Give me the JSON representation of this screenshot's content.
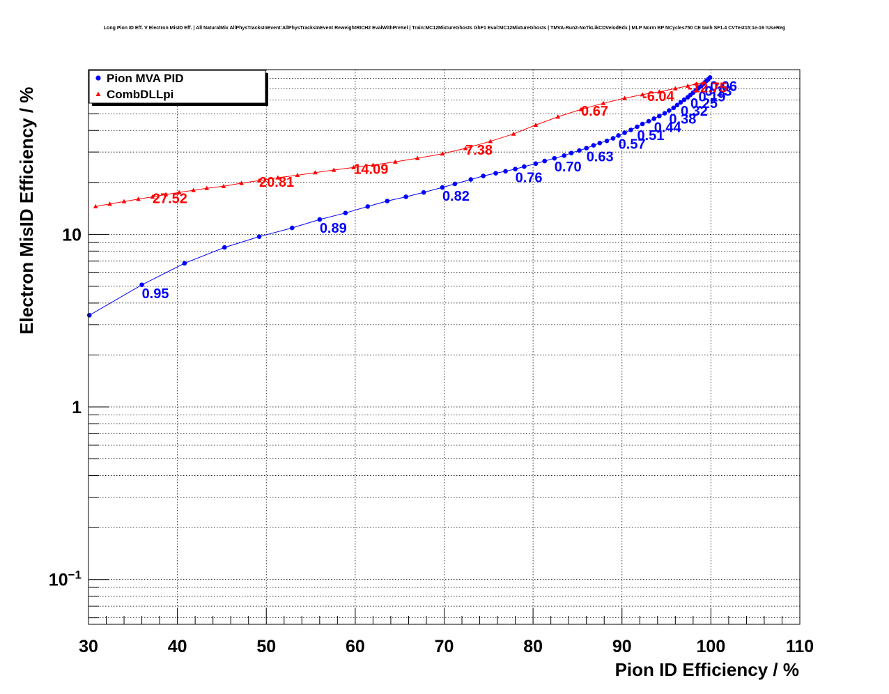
{
  "chart_data": {
    "type": "line",
    "title": "Long Pion ID Eff. V Electron MisID Eff. | All NaturalMix AllPhysTracksInEvent:AllPhysTracksInEvent ReweightRICH2 EvalWithPreSel | Train:MC12MixtureGhosts GhF1 Eval:MC12MixtureGhosts | TMVA-Run2-NoTkLikCDVelodEdx | MLP Norm BP NCycles750 CE tanh SF1.4 CVTest15:1e-16 !UseReg",
    "xlabel": "Pion ID Efficiency / %",
    "ylabel": "Electron MisID Efficiency / %",
    "xlim": [
      30,
      110
    ],
    "ylim": [
      0.055,
      90
    ],
    "yscale": "log",
    "grid": true,
    "legend_position": "top-left",
    "x_ticks": [
      "30",
      "40",
      "50",
      "60",
      "70",
      "80",
      "90",
      "100",
      "110"
    ],
    "y_ticks": [
      {
        "value": 0.1,
        "base": "10",
        "exp": "−1"
      },
      {
        "value": 1,
        "base": "1",
        "exp": ""
      },
      {
        "value": 10,
        "base": "10",
        "exp": ""
      }
    ],
    "series": [
      {
        "name": "Pion MVA PID",
        "color": "#0000ff",
        "marker": "circle",
        "x": [
          30.1,
          36.0,
          40.8,
          45.3,
          49.2,
          52.9,
          56.0,
          58.9,
          61.4,
          63.6,
          65.7,
          67.7,
          69.8,
          71.2,
          73.0,
          74.4,
          75.8,
          76.9,
          78.0,
          79.0,
          80.3,
          81.3,
          82.4,
          83.5,
          84.3,
          85.2,
          86.0,
          86.8,
          87.5,
          88.3,
          89.0,
          89.6,
          90.3,
          91.0,
          91.7,
          92.3,
          93.0,
          93.6,
          94.2,
          94.8,
          95.3,
          95.8,
          96.2,
          96.6,
          97.0,
          97.4,
          97.7,
          98.0,
          98.3,
          98.6,
          98.9,
          99.1,
          99.3,
          99.5,
          99.7,
          99.9
        ],
        "y": [
          3.4,
          5.1,
          6.8,
          8.4,
          9.7,
          10.9,
          12.2,
          13.3,
          14.5,
          15.6,
          16.5,
          17.5,
          18.7,
          19.6,
          20.8,
          21.8,
          22.6,
          23.2,
          23.9,
          24.7,
          25.7,
          26.6,
          27.6,
          28.6,
          29.6,
          30.6,
          31.6,
          32.8,
          33.8,
          34.8,
          36.0,
          37.4,
          38.8,
          40.3,
          42.0,
          43.6,
          45.2,
          46.8,
          48.5,
          50.3,
          52.2,
          54.1,
          56.1,
          58.2,
          60.3,
          62.3,
          64.3,
          66.3,
          68.3,
          70.3,
          72.3,
          74.0,
          75.8,
          77.5,
          79.2,
          81.0
        ],
        "annotations": [
          {
            "x": 36.0,
            "y": 5.1,
            "text": "0.95"
          },
          {
            "x": 56.0,
            "y": 12.2,
            "text": "0.89"
          },
          {
            "x": 69.8,
            "y": 18.7,
            "text": "0.82"
          },
          {
            "x": 78.0,
            "y": 23.9,
            "text": "0.76"
          },
          {
            "x": 82.4,
            "y": 27.6,
            "text": "0.70"
          },
          {
            "x": 86.0,
            "y": 31.6,
            "text": "0.63"
          },
          {
            "x": 89.6,
            "y": 37.4,
            "text": "0.57"
          },
          {
            "x": 91.7,
            "y": 42.0,
            "text": "0.51"
          },
          {
            "x": 93.6,
            "y": 46.8,
            "text": "0.44"
          },
          {
            "x": 95.3,
            "y": 52.2,
            "text": "0.38"
          },
          {
            "x": 96.6,
            "y": 58.2,
            "text": "0.32"
          },
          {
            "x": 97.7,
            "y": 64.3,
            "text": "0.25"
          },
          {
            "x": 98.6,
            "y": 70.3,
            "text": "0.19"
          },
          {
            "x": 99.3,
            "y": 75.8,
            "text": "0.13"
          },
          {
            "x": 99.9,
            "y": 81.0,
            "text": "0.06"
          }
        ]
      },
      {
        "name": "CombDLLpi",
        "color": "#ff0000",
        "marker": "triangle",
        "x": [
          30.8,
          32.4,
          34.0,
          35.6,
          37.2,
          38.7,
          40.2,
          41.8,
          43.3,
          45.2,
          47.2,
          49.2,
          51.3,
          53.5,
          55.5,
          57.6,
          59.8,
          62.0,
          64.5,
          67.0,
          69.8,
          72.4,
          75.2,
          77.8,
          80.3,
          82.8,
          85.4,
          87.9,
          90.3,
          92.3,
          94.2,
          96.0,
          97.4,
          98.4,
          99.2
        ],
        "y": [
          14.5,
          15.0,
          15.5,
          16.0,
          16.5,
          17.0,
          17.5,
          18.0,
          18.5,
          19.0,
          19.8,
          20.5,
          21.3,
          22.0,
          22.8,
          23.6,
          24.4,
          25.2,
          26.3,
          27.6,
          29.3,
          31.5,
          34.6,
          38.2,
          43.0,
          48.0,
          53.0,
          57.5,
          61.5,
          64.5,
          67.0,
          70.0,
          72.5,
          74.5,
          76.0
        ],
        "annotations": [
          {
            "x": 37.2,
            "y": 16.5,
            "text": "27.52"
          },
          {
            "x": 49.2,
            "y": 20.5,
            "text": "20.81"
          },
          {
            "x": 59.8,
            "y": 24.4,
            "text": "14.09"
          },
          {
            "x": 72.4,
            "y": 31.5,
            "text": "7.38"
          },
          {
            "x": 85.4,
            "y": 53.0,
            "text": "0.67"
          },
          {
            "x": 92.3,
            "y": 64.5,
            "text": "-6.04"
          },
          {
            "x": 97.4,
            "y": 72.5,
            "text": "-12.75"
          }
        ]
      }
    ]
  }
}
